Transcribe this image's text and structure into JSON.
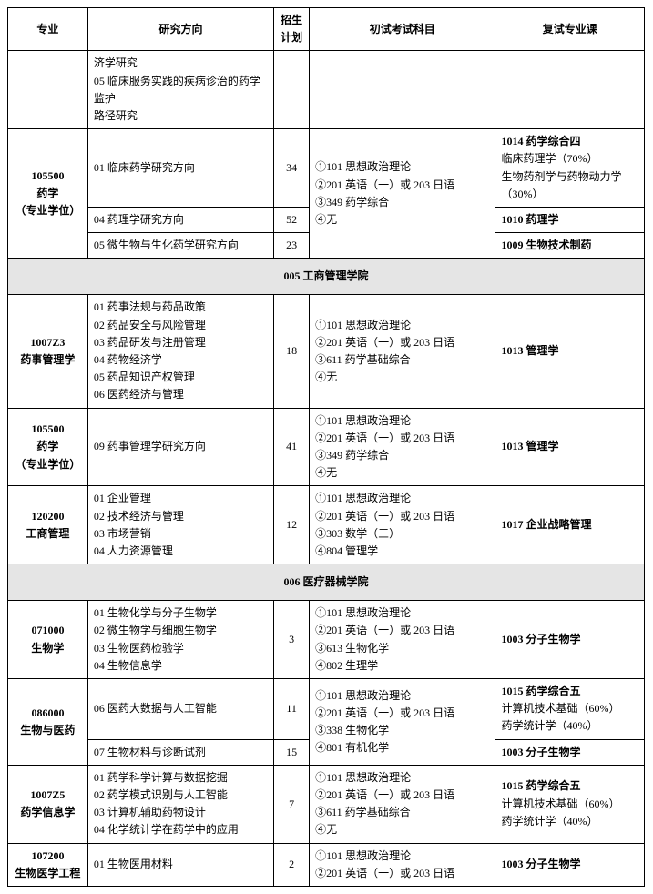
{
  "table": {
    "border_color": "#000000",
    "background": "#ffffff",
    "section_bg": "#e5e5e5",
    "font_family": "SimSun",
    "base_font_size": 12,
    "header": {
      "major": "专业",
      "direction": "研究方向",
      "plan": "招生\n计划",
      "exam": "初试考试科目",
      "reexam": "复试专业课"
    },
    "top_fragment": {
      "direction": "济学研究\n05 临床服务实践的疾病诊治的药学监护\n路径研究"
    },
    "group_105500": {
      "major": "105500\n药学\n（专业学位）",
      "exam": "①101 思想政治理论\n②201 英语（一）或 203 日语\n③349 药学综合\n④无",
      "rows": [
        {
          "direction": "01 临床药学研究方向",
          "plan": "34",
          "reexam": "1014 药学综合四",
          "reexam_sub": "临床药理学（70%）\n生物药剂学与药物动力学（30%）"
        },
        {
          "direction": "04 药理学研究方向",
          "plan": "52",
          "reexam": "1010 药理学",
          "reexam_sub": ""
        },
        {
          "direction": "05 微生物与生化药学研究方向",
          "plan": "23",
          "reexam": "1009 生物技术制药",
          "reexam_sub": ""
        }
      ]
    },
    "section_005": {
      "title": "005 工商管理学院"
    },
    "row_1007Z3": {
      "major": "1007Z3\n药事管理学",
      "direction": "01 药事法规与药品政策\n02 药品安全与风险管理\n03 药品研发与注册管理\n04 药物经济学\n05 药品知识产权管理\n06 医药经济与管理",
      "plan": "18",
      "exam": "①101 思想政治理论\n②201 英语（一）或 203 日语\n③611 药学基础综合\n④无",
      "reexam": "1013 管理学"
    },
    "row_105500b": {
      "major": "105500\n药学\n（专业学位）",
      "direction": "09 药事管理学研究方向",
      "plan": "41",
      "exam": "①101 思想政治理论\n②201 英语（一）或 203 日语\n③349 药学综合\n④无",
      "reexam": "1013 管理学"
    },
    "row_120200": {
      "major": "120200\n工商管理",
      "direction": "01 企业管理\n02 技术经济与管理\n03 市场营销\n04 人力资源管理",
      "plan": "12",
      "exam": "①101 思想政治理论\n②201 英语（一）或 203 日语\n③303 数学（三）\n④804 管理学",
      "reexam": "1017 企业战略管理"
    },
    "section_006": {
      "title": "006 医疗器械学院"
    },
    "row_071000": {
      "major": "071000\n生物学",
      "direction": "01 生物化学与分子生物学\n02 微生物学与细胞生物学\n03 生物医药检验学\n04 生物信息学",
      "plan": "3",
      "exam": "①101 思想政治理论\n②201 英语（一）或 203 日语\n③613 生物化学\n④802 生理学",
      "reexam": "1003 分子生物学"
    },
    "group_086000": {
      "major": "086000\n生物与医药",
      "exam": "①101 思想政治理论\n②201 英语（一）或 203 日语\n③338 生物化学\n④801 有机化学",
      "rows": [
        {
          "direction": "06 医药大数据与人工智能",
          "plan": "11",
          "reexam": "1015 药学综合五",
          "reexam_sub": "计算机技术基础（60%）\n药学统计学（40%）"
        },
        {
          "direction": "07 生物材料与诊断试剂",
          "plan": "15",
          "reexam": "1003 分子生物学",
          "reexam_sub": ""
        }
      ]
    },
    "row_1007Z5": {
      "major": "1007Z5\n药学信息学",
      "direction": "01 药学科学计算与数据挖掘\n02 药学模式识别与人工智能\n03 计算机辅助药物设计\n04 化学统计学在药学中的应用",
      "plan": "7",
      "exam": "①101 思想政治理论\n②201 英语（一）或 203 日语\n③611 药学基础综合\n④无",
      "reexam": "1015 药学综合五",
      "reexam_sub": "计算机技术基础（60%）\n药学统计学（40%）"
    },
    "row_107200": {
      "major": "107200\n生物医学工程",
      "direction": "01 生物医用材料",
      "plan": "2",
      "exam": "①101 思想政治理论\n②201 英语（一）或 203 日语",
      "reexam": "1003 分子生物学"
    }
  }
}
